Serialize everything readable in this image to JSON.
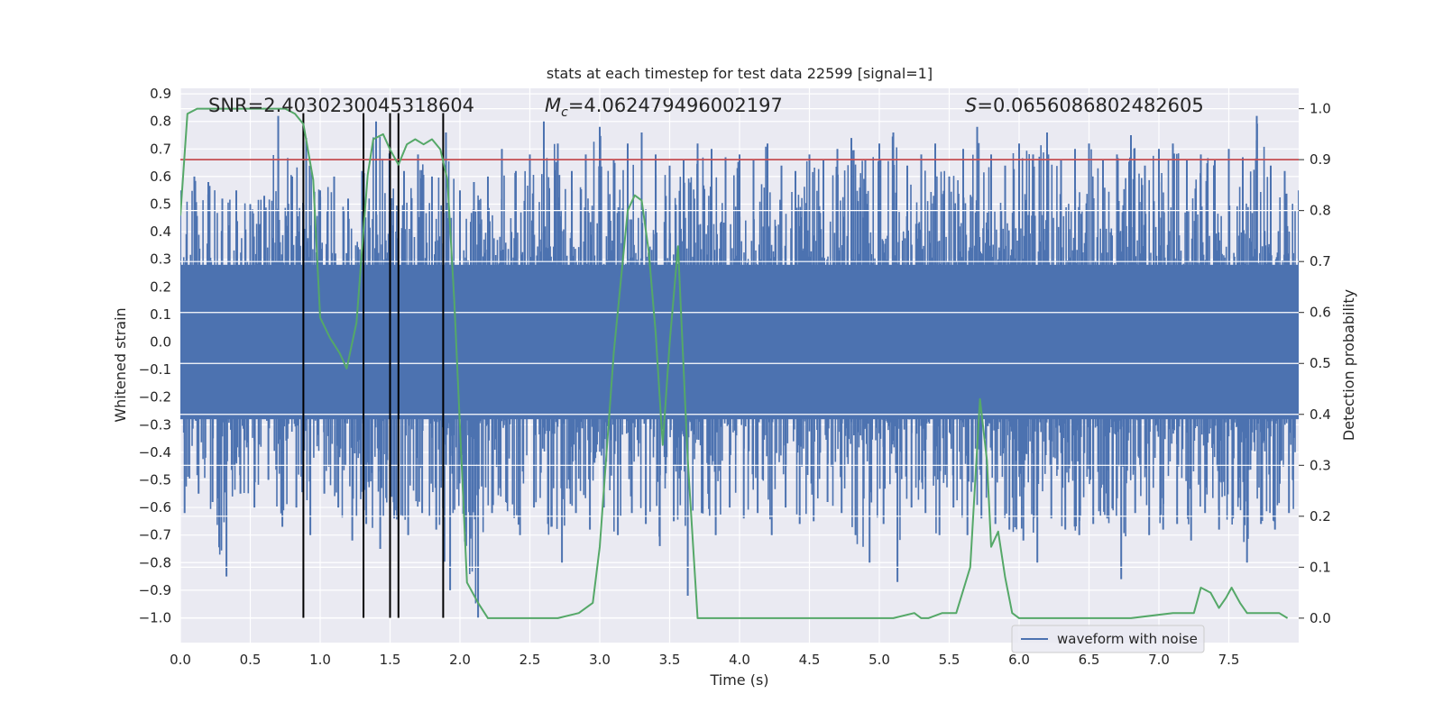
{
  "chart_data": {
    "type": "line",
    "title": "stats at each timestep for test data 22599 [signal=1]",
    "xlabel": "Time (s)",
    "ylabel": "Whitened strain",
    "y2label": "Detection probability",
    "xlim": [
      0.0,
      8.0
    ],
    "ylim": [
      -1.09,
      0.92
    ],
    "y2lim": [
      -0.048,
      1.04
    ],
    "xticks": [
      "0.0",
      "0.5",
      "1.0",
      "1.5",
      "2.0",
      "2.5",
      "3.0",
      "3.5",
      "4.0",
      "4.5",
      "5.0",
      "5.5",
      "6.0",
      "6.5",
      "7.0",
      "7.5"
    ],
    "yticks": [
      "0.9",
      "0.8",
      "0.7",
      "0.6",
      "0.5",
      "0.4",
      "0.3",
      "0.2",
      "0.1",
      "0.0",
      "-0.1",
      "-0.2",
      "-0.3",
      "-0.4",
      "-0.5",
      "-0.6",
      "-0.7",
      "-0.8",
      "-0.9",
      "-1.0"
    ],
    "y2ticks": [
      "1.0",
      "0.9",
      "0.8",
      "0.7",
      "0.6",
      "0.5",
      "0.4",
      "0.3",
      "0.2",
      "0.1",
      "0.0"
    ],
    "grid": true,
    "annotations": {
      "snr": "SNR=2.4030230045318604",
      "mc": "=4.062479496002197",
      "mc_symbol": "M",
      "mc_sub": "c",
      "s": "=0.0656086802482605",
      "s_symbol": "S"
    },
    "threshold": 0.9,
    "vlines": [
      0.88,
      1.31,
      1.5,
      1.56,
      1.88
    ],
    "vline_range": [
      -1.0,
      0.83
    ],
    "series": [
      {
        "name": "waveform with noise",
        "color": "#4c72b0",
        "envelope": {
          "x": [
            0.0,
            0.1,
            0.2,
            0.3,
            0.4,
            0.5,
            0.6,
            0.7,
            0.8,
            0.9,
            1.0,
            1.1,
            1.2,
            1.3,
            1.4,
            1.5,
            1.6,
            1.7,
            1.8,
            1.9,
            2.0,
            2.1,
            2.2,
            2.3,
            2.4,
            2.5,
            2.6,
            2.7,
            2.8,
            2.9,
            3.0,
            3.1,
            3.2,
            3.3,
            3.4,
            3.5,
            3.6,
            3.7,
            3.8,
            3.9,
            4.0,
            4.1,
            4.2,
            4.3,
            4.4,
            4.5,
            4.6,
            4.7,
            4.8,
            4.9,
            5.0,
            5.1,
            5.2,
            5.3,
            5.4,
            5.5,
            5.6,
            5.7,
            5.8,
            5.9,
            6.0,
            6.1,
            6.2,
            6.3,
            6.4,
            6.5,
            6.6,
            6.7,
            6.8,
            6.9,
            7.0,
            7.1,
            7.2,
            7.3,
            7.4,
            7.5,
            7.6,
            7.7,
            7.8,
            7.9,
            8.0
          ],
          "max": [
            0.55,
            0.6,
            0.58,
            0.52,
            0.55,
            0.5,
            0.53,
            0.82,
            0.6,
            0.74,
            0.55,
            0.6,
            0.52,
            0.62,
            0.8,
            0.75,
            0.62,
            0.68,
            0.6,
            0.76,
            0.55,
            0.58,
            0.6,
            0.7,
            0.62,
            0.68,
            0.8,
            0.72,
            0.62,
            0.68,
            0.78,
            0.66,
            0.72,
            0.76,
            0.68,
            0.64,
            0.66,
            0.72,
            0.7,
            0.67,
            0.68,
            0.66,
            0.72,
            0.64,
            0.62,
            0.68,
            0.66,
            0.7,
            0.74,
            0.66,
            0.72,
            0.76,
            0.64,
            0.68,
            0.72,
            0.6,
            0.7,
            0.78,
            0.68,
            0.64,
            0.72,
            0.68,
            0.76,
            0.66,
            0.7,
            0.72,
            0.66,
            0.68,
            0.75,
            0.64,
            0.7,
            0.72,
            0.66,
            0.68,
            0.66,
            0.7,
            0.67,
            0.82,
            0.64,
            0.62,
            0.55
          ],
          "min": [
            -0.62,
            -0.55,
            -0.58,
            -0.85,
            -0.55,
            -0.6,
            -0.5,
            -0.67,
            -0.6,
            -0.7,
            -0.55,
            -0.6,
            -0.72,
            -0.66,
            -0.75,
            -0.64,
            -0.7,
            -0.62,
            -0.68,
            -0.9,
            -0.6,
            -1.0,
            -0.62,
            -0.58,
            -0.7,
            -0.6,
            -0.66,
            -0.8,
            -0.62,
            -0.68,
            -0.6,
            -0.7,
            -0.62,
            -0.66,
            -0.74,
            -0.65,
            -0.92,
            -0.62,
            -0.7,
            -0.6,
            -0.64,
            -0.62,
            -0.7,
            -0.6,
            -0.66,
            -0.65,
            -0.58,
            -0.62,
            -0.7,
            -0.8,
            -0.66,
            -0.87,
            -0.6,
            -0.62,
            -0.7,
            -0.6,
            -0.7,
            -0.64,
            -0.66,
            -0.68,
            -0.72,
            -0.8,
            -0.64,
            -0.68,
            -0.7,
            -0.66,
            -0.64,
            -0.86,
            -0.62,
            -0.7,
            -0.68,
            -0.66,
            -0.72,
            -0.62,
            -0.68,
            -0.64,
            -0.8,
            -0.66,
            -0.68,
            -0.62,
            -0.6
          ]
        }
      },
      {
        "name": "detection probability",
        "color": "#55a868",
        "x": [
          0.0,
          0.05,
          0.12,
          0.3,
          0.5,
          0.62,
          0.75,
          0.82,
          0.88,
          0.95,
          1.0,
          1.07,
          1.14,
          1.19,
          1.26,
          1.34,
          1.38,
          1.45,
          1.5,
          1.56,
          1.62,
          1.68,
          1.74,
          1.8,
          1.86,
          1.91,
          1.96,
          2.05,
          2.13,
          2.2,
          2.3,
          2.5,
          2.7,
          2.85,
          2.95,
          3.0,
          3.1,
          3.2,
          3.25,
          3.3,
          3.35,
          3.4,
          3.45,
          3.5,
          3.56,
          3.63,
          3.7,
          3.75,
          3.9,
          4.2,
          4.5,
          4.7,
          4.8,
          4.9,
          5.1,
          5.25,
          5.3,
          5.35,
          5.45,
          5.55,
          5.65,
          5.72,
          5.77,
          5.8,
          5.85,
          5.9,
          5.95,
          6.0,
          6.07,
          6.15,
          6.3,
          6.5,
          6.8,
          7.1,
          7.25,
          7.3,
          7.37,
          7.43,
          7.48,
          7.52,
          7.58,
          7.63,
          7.68,
          7.76,
          7.86,
          7.92
        ],
        "values": [
          0.79,
          0.99,
          1.0,
          1.0,
          1.0,
          1.0,
          1.0,
          0.99,
          0.97,
          0.86,
          0.59,
          0.55,
          0.52,
          0.49,
          0.58,
          0.87,
          0.94,
          0.95,
          0.92,
          0.89,
          0.93,
          0.94,
          0.93,
          0.94,
          0.92,
          0.86,
          0.62,
          0.07,
          0.03,
          0.0,
          0.0,
          0.0,
          0.0,
          0.01,
          0.03,
          0.14,
          0.52,
          0.8,
          0.83,
          0.82,
          0.72,
          0.56,
          0.34,
          0.54,
          0.73,
          0.31,
          0.0,
          0.0,
          0.0,
          0.0,
          0.0,
          0.0,
          0.0,
          0.0,
          0.0,
          0.01,
          0.0,
          0.0,
          0.01,
          0.01,
          0.1,
          0.43,
          0.31,
          0.14,
          0.17,
          0.08,
          0.01,
          0.0,
          0.0,
          0.0,
          0.0,
          0.0,
          0.0,
          0.01,
          0.01,
          0.06,
          0.05,
          0.02,
          0.04,
          0.06,
          0.03,
          0.01,
          0.01,
          0.01,
          0.01,
          0.0
        ]
      }
    ],
    "legend": {
      "label": "waveform with noise",
      "position": "lower-right"
    }
  },
  "colors": {
    "background": "#eaeaf2",
    "grid": "#ffffff",
    "waveform": "#4c72b0",
    "probability": "#55a868",
    "threshold": "#c44e52",
    "vline": "#000000"
  }
}
